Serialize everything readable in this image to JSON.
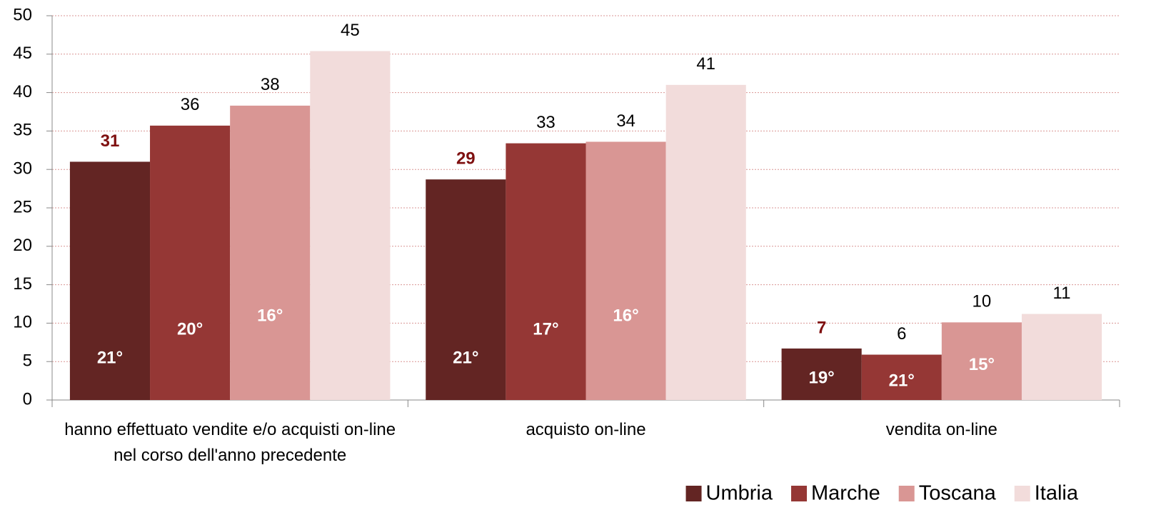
{
  "chart_data": {
    "type": "bar",
    "categories": [
      "hanno effettuato vendite e/o acquisti on-line nel corso dell'anno precedente",
      "acquisto on-line",
      "vendita on-line"
    ],
    "series": [
      {
        "name": "Umbria",
        "color": "#632523",
        "label_color": "#7f1010",
        "label_bold": true,
        "values": [
          31.0,
          28.7,
          6.7
        ],
        "value_labels": [
          "31",
          "29",
          "7"
        ],
        "rank_labels": [
          "21°",
          "21°",
          "19°"
        ]
      },
      {
        "name": "Marche",
        "color": "#953735",
        "label_color": "#000000",
        "label_bold": false,
        "values": [
          35.7,
          33.4,
          5.9
        ],
        "value_labels": [
          "36",
          "33",
          "6"
        ],
        "rank_labels": [
          "20°",
          "17°",
          "21°"
        ]
      },
      {
        "name": "Toscana",
        "color": "#d99694",
        "label_color": "#000000",
        "label_bold": false,
        "values": [
          38.3,
          33.6,
          10.1
        ],
        "value_labels": [
          "38",
          "34",
          "10"
        ],
        "rank_labels": [
          "16°",
          "16°",
          "15°"
        ]
      },
      {
        "name": "Italia",
        "color": "#f2dcdb",
        "label_color": "#000000",
        "label_bold": false,
        "values": [
          45.4,
          41.0,
          11.2
        ],
        "value_labels": [
          "45",
          "41",
          "11"
        ],
        "rank_labels": []
      }
    ],
    "ylim": [
      0,
      50
    ],
    "yticks": [
      0,
      5,
      10,
      15,
      20,
      25,
      30,
      35,
      40,
      45,
      50
    ],
    "grid": true,
    "legend": "bottom-right"
  }
}
